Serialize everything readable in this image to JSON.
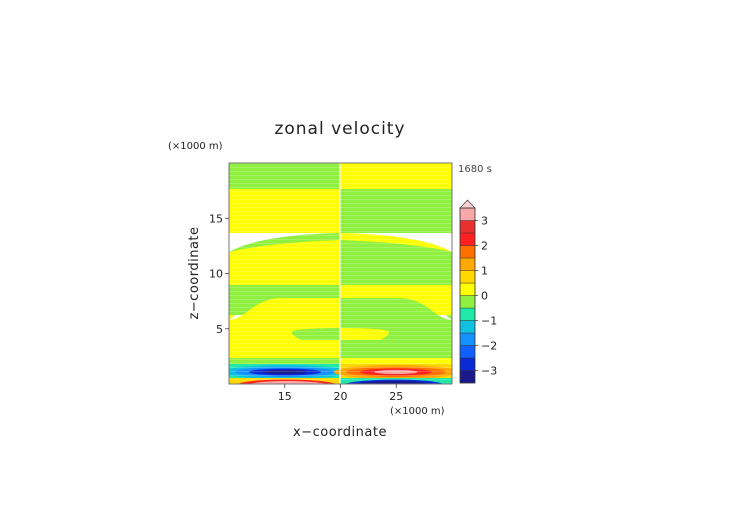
{
  "chart_data": {
    "type": "heatmap",
    "title": "zonal velocity",
    "xlabel": "x−coordinate",
    "ylabel": "z−coordinate",
    "x_unit": "(×1000 m)",
    "y_unit": "(×1000 m)",
    "time_label": "1680 s",
    "xlim": [
      10,
      30
    ],
    "ylim": [
      0,
      20
    ],
    "x_ticks": [
      "15",
      "20",
      "25"
    ],
    "x_tick_values": [
      15,
      20,
      25
    ],
    "y_ticks": [
      "5",
      "10",
      "15"
    ],
    "y_tick_values": [
      5,
      10,
      15
    ],
    "colorbar": {
      "ticks": [
        "3",
        "2",
        "1",
        "0",
        "−1",
        "−2",
        "−3"
      ],
      "tick_values": [
        3,
        2,
        1,
        0,
        -1,
        -2,
        -3
      ],
      "levels": [
        -3.5,
        -3,
        -2.5,
        -2,
        -1.5,
        -1,
        -0.5,
        0,
        0.5,
        1,
        1.5,
        2,
        2.5,
        3,
        3.5
      ],
      "colors": [
        "#1a1a8c",
        "#0a2ad8",
        "#1060ff",
        "#1590ff",
        "#10c0e0",
        "#20e8a8",
        "#90f040",
        "#ffff00",
        "#ffd800",
        "#ffa800",
        "#ff7000",
        "#ff2020",
        "#e83030",
        "#f8a8a8"
      ],
      "extend": "max"
    },
    "regions": [
      {
        "name": "upper-left",
        "x": [
          10,
          20
        ],
        "z": [
          0.8,
          20
        ],
        "value": "0 to 0.5 with bands of -0.5 to 0"
      },
      {
        "name": "upper-right",
        "x": [
          20,
          30
        ],
        "z": [
          0.8,
          20
        ],
        "value": "mirror of left, sign reversed"
      },
      {
        "name": "low-level-jet-left",
        "x": [
          10,
          20
        ],
        "z": [
          0.5,
          1.5
        ],
        "value": -2.5
      },
      {
        "name": "low-level-jet-right",
        "x": [
          20,
          30
        ],
        "z": [
          0.5,
          1.5
        ],
        "value": 2.5
      },
      {
        "name": "surface-left",
        "x": [
          11,
          19
        ],
        "z": [
          0,
          0.4
        ],
        "value": 3
      },
      {
        "name": "surface-right",
        "x": [
          21,
          29
        ],
        "z": [
          0,
          0.4
        ],
        "value": -3
      }
    ]
  }
}
